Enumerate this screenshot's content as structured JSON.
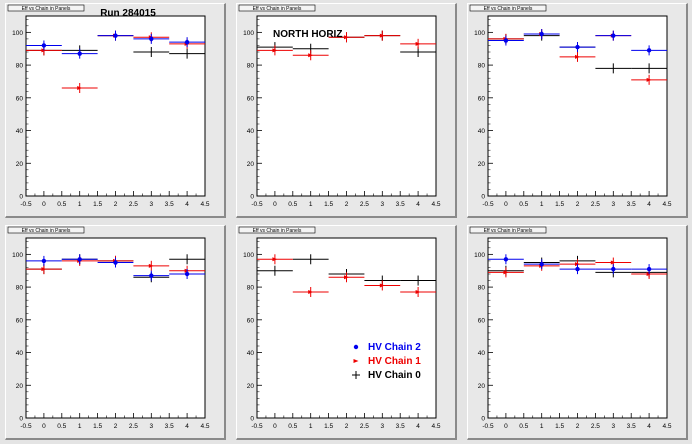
{
  "title_box_text": "Eff vs Chain in Panels",
  "pad_labels": [
    "Run 284015",
    "NORTH HORIZ",
    "",
    "",
    "",
    ""
  ],
  "legend": {
    "entries": [
      {
        "label": "HV Chain 2",
        "color": "#0000ee"
      },
      {
        "label": "HV Chain 1",
        "color": "#ee0000"
      },
      {
        "label": "HV Chain 0",
        "color": "#000000"
      }
    ]
  },
  "axis": {
    "x_ticks": [
      "-0.5",
      "0",
      "0.5",
      "1",
      "1.5",
      "2",
      "2.5",
      "3",
      "3.5",
      "4",
      "4.5"
    ],
    "y_ticks": [
      "0",
      "20",
      "40",
      "60",
      "80",
      "100"
    ]
  },
  "chart_data": [
    {
      "type": "scatter",
      "xlim": [
        -0.5,
        4.5
      ],
      "ylim": [
        0,
        110
      ],
      "series": [
        {
          "name": "HV Chain 2",
          "color": "#0000ee",
          "points": [
            [
              0,
              92
            ],
            [
              1,
              87
            ],
            [
              2,
              98
            ],
            [
              3,
              96
            ],
            [
              4,
              94
            ]
          ]
        },
        {
          "name": "HV Chain 1",
          "color": "#ee0000",
          "points": [
            [
              0,
              89
            ],
            [
              1,
              66
            ],
            [
              2,
              98
            ],
            [
              3,
              97
            ],
            [
              4,
              93
            ]
          ]
        },
        {
          "name": "HV Chain 0",
          "color": "#000000",
          "points": [
            [
              0,
              89
            ],
            [
              1,
              89
            ],
            [
              2,
              98
            ],
            [
              3,
              88
            ],
            [
              4,
              87
            ]
          ]
        }
      ]
    },
    {
      "type": "scatter",
      "xlim": [
        -0.5,
        4.5
      ],
      "ylim": [
        0,
        110
      ],
      "series": [
        {
          "name": "HV Chain 2",
          "color": "#0000ee",
          "points": []
        },
        {
          "name": "HV Chain 1",
          "color": "#ee0000",
          "points": [
            [
              0,
              89
            ],
            [
              1,
              86
            ],
            [
              2,
              97
            ],
            [
              3,
              98
            ],
            [
              4,
              93
            ]
          ]
        },
        {
          "name": "HV Chain 0",
          "color": "#000000",
          "points": [
            [
              0,
              91
            ],
            [
              1,
              90
            ],
            [
              2,
              97
            ],
            [
              3,
              98
            ],
            [
              4,
              88
            ]
          ]
        }
      ]
    },
    {
      "type": "scatter",
      "xlim": [
        -0.5,
        4.5
      ],
      "ylim": [
        0,
        110
      ],
      "series": [
        {
          "name": "HV Chain 2",
          "color": "#0000ee",
          "points": [
            [
              0,
              95
            ],
            [
              1,
              99
            ],
            [
              2,
              91
            ],
            [
              3,
              98
            ],
            [
              4,
              89
            ]
          ]
        },
        {
          "name": "HV Chain 1",
          "color": "#ee0000",
          "points": [
            [
              0,
              96
            ],
            [
              1,
              99
            ],
            [
              2,
              85
            ],
            [
              3,
              98
            ],
            [
              4,
              71
            ]
          ]
        },
        {
          "name": "HV Chain 0",
          "color": "#000000",
          "points": [
            [
              0,
              96
            ],
            [
              1,
              98
            ],
            [
              2,
              91
            ],
            [
              3,
              78
            ],
            [
              4,
              78
            ]
          ]
        }
      ]
    },
    {
      "type": "scatter",
      "xlim": [
        -0.5,
        4.5
      ],
      "ylim": [
        0,
        110
      ],
      "series": [
        {
          "name": "HV Chain 2",
          "color": "#0000ee",
          "points": [
            [
              0,
              96
            ],
            [
              1,
              97
            ],
            [
              2,
              95
            ],
            [
              3,
              87
            ],
            [
              4,
              88
            ]
          ]
        },
        {
          "name": "HV Chain 1",
          "color": "#ee0000",
          "points": [
            [
              0,
              91
            ],
            [
              1,
              96
            ],
            [
              2,
              96
            ],
            [
              3,
              93
            ],
            [
              4,
              90
            ]
          ]
        },
        {
          "name": "HV Chain 0",
          "color": "#000000",
          "points": [
            [
              0,
              91
            ],
            [
              1,
              97
            ],
            [
              2,
              96
            ],
            [
              3,
              86
            ],
            [
              4,
              97
            ]
          ]
        }
      ]
    },
    {
      "type": "scatter",
      "xlim": [
        -0.5,
        4.5
      ],
      "ylim": [
        0,
        110
      ],
      "series": [
        {
          "name": "HV Chain 2",
          "color": "#0000ee",
          "points": []
        },
        {
          "name": "HV Chain 1",
          "color": "#ee0000",
          "points": [
            [
              0,
              97
            ],
            [
              1,
              77
            ],
            [
              2,
              86
            ],
            [
              3,
              81
            ],
            [
              4,
              77
            ]
          ]
        },
        {
          "name": "HV Chain 0",
          "color": "#000000",
          "points": [
            [
              0,
              90
            ],
            [
              1,
              97
            ],
            [
              2,
              88
            ],
            [
              3,
              84
            ],
            [
              4,
              84
            ]
          ]
        }
      ]
    },
    {
      "type": "scatter",
      "xlim": [
        -0.5,
        4.5
      ],
      "ylim": [
        0,
        110
      ],
      "series": [
        {
          "name": "HV Chain 2",
          "color": "#0000ee",
          "points": [
            [
              0,
              97
            ],
            [
              1,
              94
            ],
            [
              2,
              91
            ],
            [
              3,
              91
            ],
            [
              4,
              91
            ]
          ]
        },
        {
          "name": "HV Chain 1",
          "color": "#ee0000",
          "points": [
            [
              0,
              89
            ],
            [
              1,
              93
            ],
            [
              2,
              94
            ],
            [
              3,
              95
            ],
            [
              4,
              88
            ]
          ]
        },
        {
          "name": "HV Chain 0",
          "color": "#000000",
          "points": [
            [
              0,
              90
            ],
            [
              1,
              95
            ],
            [
              2,
              96
            ],
            [
              3,
              89
            ],
            [
              4,
              89
            ]
          ]
        }
      ]
    }
  ]
}
